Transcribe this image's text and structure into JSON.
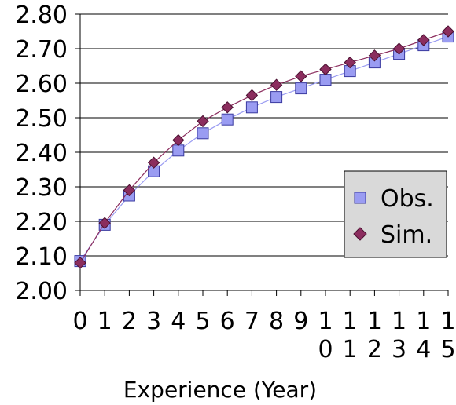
{
  "chart_data": {
    "type": "line",
    "title": "",
    "xlabel": "Experience (Year)",
    "ylabel": "",
    "categories": [
      "0",
      "1",
      "2",
      "3",
      "4",
      "5",
      "6",
      "7",
      "8",
      "9",
      "10",
      "11",
      "12",
      "13",
      "14",
      "15"
    ],
    "ylim": [
      2.0,
      2.8
    ],
    "yticks": [
      "2.00",
      "2.10",
      "2.20",
      "2.30",
      "2.40",
      "2.50",
      "2.60",
      "2.70",
      "2.80"
    ],
    "grid": true,
    "legend_position": "right",
    "series": [
      {
        "name": "Obs.",
        "marker": "square",
        "color": "#9a9cf2",
        "values": [
          2.085,
          2.19,
          2.275,
          2.345,
          2.405,
          2.455,
          2.495,
          2.53,
          2.56,
          2.585,
          2.61,
          2.635,
          2.66,
          2.685,
          2.71,
          2.735
        ]
      },
      {
        "name": "Sim.",
        "marker": "diamond",
        "color": "#8b2d5e",
        "values": [
          2.08,
          2.195,
          2.29,
          2.37,
          2.435,
          2.49,
          2.53,
          2.565,
          2.595,
          2.62,
          2.64,
          2.66,
          2.68,
          2.7,
          2.725,
          2.75
        ]
      }
    ]
  }
}
